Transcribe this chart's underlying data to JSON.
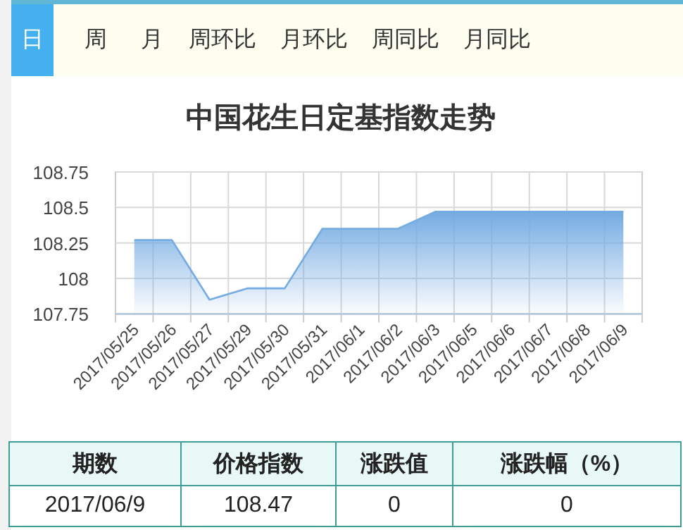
{
  "chart_data": [
    {
      "type": "other",
      "annotations": [
        "日",
        "周",
        "月",
        "周环比",
        "月环比",
        "周同比",
        "月同比"
      ]
    },
    {
      "type": "area",
      "title": "中国花生日定基指数走势",
      "categories": [
        "2017/05/25",
        "2017/05/26",
        "2017/05/27",
        "2017/05/29",
        "2017/05/30",
        "2017/05/31",
        "2017/06/1",
        "2017/06/2",
        "2017/06/3",
        "2017/06/5",
        "2017/06/6",
        "2017/06/7",
        "2017/06/8",
        "2017/06/9"
      ],
      "series": [
        {
          "color": "#74abe2",
          "values": [
            108.27,
            108.27,
            107.85,
            107.93,
            107.93,
            108.35,
            108.35,
            108.35,
            108.47,
            108.47,
            108.47,
            108.47,
            108.47,
            108.47
          ]
        }
      ],
      "ylim": [
        107.75,
        108.75
      ],
      "yticks": [
        107.75,
        108,
        108.25,
        108.5,
        108.75
      ],
      "grid": true,
      "marker": "none",
      "line_style": "solid"
    },
    {
      "type": "other",
      "annotations": [
        "期数",
        "价格指数",
        "涨跌值",
        "涨跌幅（%）",
        "2017/06/9",
        "108.47",
        "0",
        "0"
      ]
    }
  ]
}
